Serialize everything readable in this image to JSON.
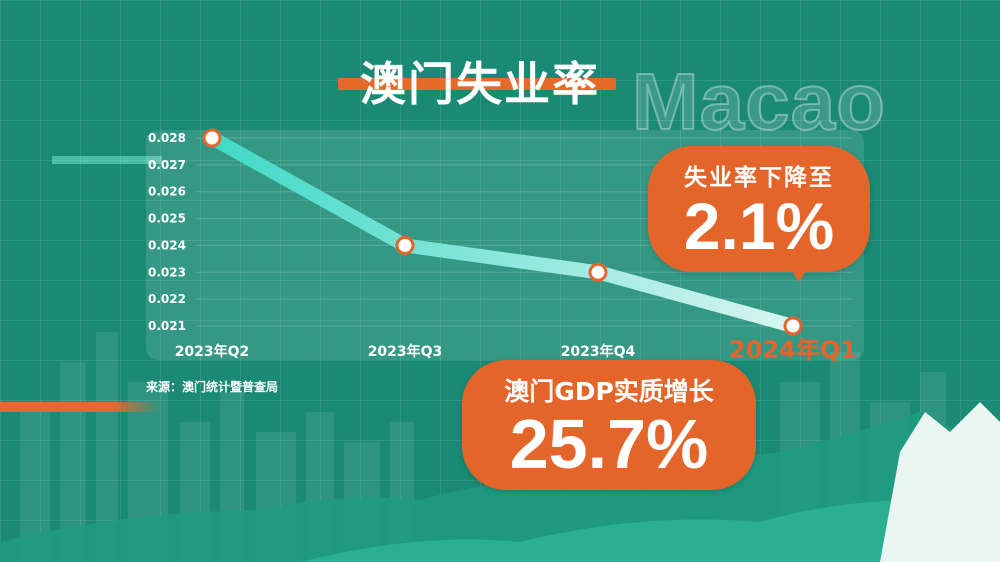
{
  "title": "澳门失业率",
  "watermark": "Macao",
  "source": "来源：澳门统计暨普查局",
  "callout_unemployment": {
    "label": "失业率下降至",
    "value": "2.1%"
  },
  "callout_gdp": {
    "label": "澳门GDP实质增长",
    "value": "25.7%"
  },
  "colors": {
    "orange": "#e4652a",
    "line_start": "#3fd9c6",
    "line_end": "#d8f5f1",
    "background": "#1a8a74"
  },
  "chart_data": {
    "type": "line",
    "categories": [
      "2023年Q2",
      "2023年Q3",
      "2023年Q4",
      "2024年Q1"
    ],
    "values": [
      0.028,
      0.024,
      0.023,
      0.021
    ],
    "yticks": [
      "0.028",
      "0.027",
      "0.026",
      "0.025",
      "0.024",
      "0.023",
      "0.022",
      "0.021"
    ],
    "ylim": [
      0.021,
      0.028
    ],
    "highlighted_category": "2024年Q1",
    "title": "",
    "xlabel": "",
    "ylabel": "",
    "grid": true
  }
}
